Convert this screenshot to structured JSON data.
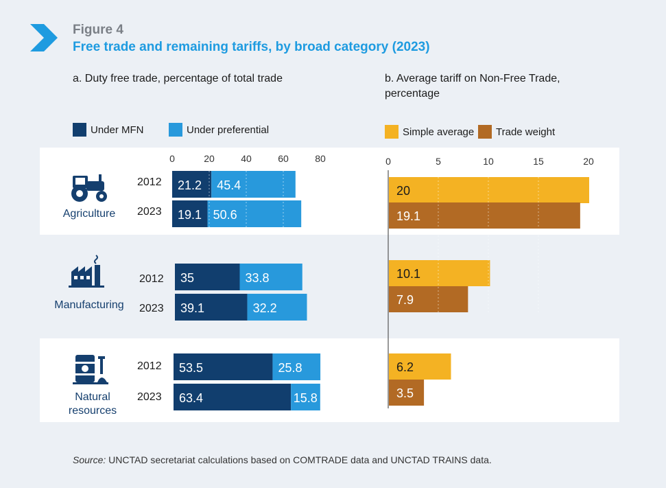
{
  "figure": {
    "label": "Figure 4",
    "title": "Free trade and remaining tariffs, by broad category (2023)"
  },
  "colors": {
    "mfn": "#113e6e",
    "preferential": "#2899dc",
    "simple": "#f4b223",
    "trade": "#b26a24",
    "category_text": "#153f6e",
    "accent": "#1e9be0"
  },
  "source": {
    "prefix": "Source:",
    "text": "UNCTAD secretariat calculations based on COMTRADE data and UNCTAD TRAINS data."
  },
  "chart_data": [
    {
      "type": "bar",
      "stacked": true,
      "orientation": "horizontal",
      "title": "a. Duty free trade, percentage of total trade",
      "xlim": [
        0,
        80
      ],
      "xticks": [
        "0",
        "20",
        "40",
        "60",
        "80"
      ],
      "legend": [
        {
          "name": "Under MFN",
          "color": "#113e6e"
        },
        {
          "name": "Under preferential",
          "color": "#2899dc"
        }
      ],
      "groups": [
        {
          "category": "Agriculture",
          "rows": [
            {
              "year": "2012",
              "mfn": 21.2,
              "pref": 45.4
            },
            {
              "year": "2023",
              "mfn": 19.1,
              "pref": 50.6
            }
          ]
        },
        {
          "category": "Manufacturing",
          "rows": [
            {
              "year": "2012",
              "mfn": 35,
              "pref": 33.8
            },
            {
              "year": "2023",
              "mfn": 39.1,
              "pref": 32.2
            }
          ]
        },
        {
          "category": "Natural resources",
          "rows": [
            {
              "year": "2012",
              "mfn": 53.5,
              "pref": 25.8
            },
            {
              "year": "2023",
              "mfn": 63.4,
              "pref": 15.8
            }
          ]
        }
      ]
    },
    {
      "type": "bar",
      "orientation": "horizontal",
      "title": "b. Average tariff on Non-Free Trade, percentage",
      "xlim": [
        0,
        20
      ],
      "xticks": [
        "0",
        "5",
        "10",
        "15",
        "20"
      ],
      "legend": [
        {
          "name": "Simple average",
          "color": "#f4b223"
        },
        {
          "name": "Trade weight",
          "color": "#b26a24"
        }
      ],
      "groups": [
        {
          "category": "Agriculture",
          "simple": 20,
          "trade": 19.1
        },
        {
          "category": "Manufacturing",
          "simple": 10.1,
          "trade": 7.9
        },
        {
          "category": "Natural resources",
          "simple": 6.2,
          "trade": 3.5
        }
      ]
    }
  ]
}
